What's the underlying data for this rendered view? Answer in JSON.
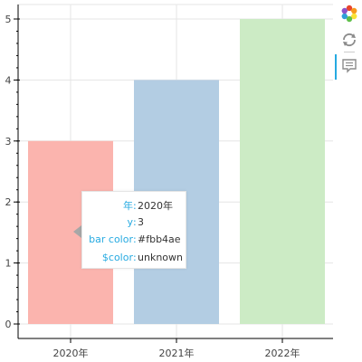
{
  "chart_data": {
    "type": "bar",
    "categories": [
      "2020年",
      "2021年",
      "2022年"
    ],
    "values": [
      3,
      4,
      5
    ],
    "colors": [
      "#fbb4ae",
      "#b3cde3",
      "#ccebc5"
    ],
    "ylim": [
      0,
      5
    ],
    "yticks": [
      "0",
      "1",
      "2",
      "3",
      "4",
      "5"
    ],
    "grid": true,
    "title": "",
    "xlabel": "",
    "ylabel": ""
  },
  "toolbar": {
    "tools": [
      "bokeh-logo-icon",
      "reset-icon",
      "hover-icon"
    ],
    "active_tool": "hover-icon"
  },
  "tooltip": {
    "rows": [
      {
        "label": "年",
        "value": "2020年"
      },
      {
        "label": "y",
        "value": "3"
      },
      {
        "label": "bar color",
        "value": "#fbb4ae"
      },
      {
        "label": "$color",
        "value": "unknown"
      }
    ]
  }
}
